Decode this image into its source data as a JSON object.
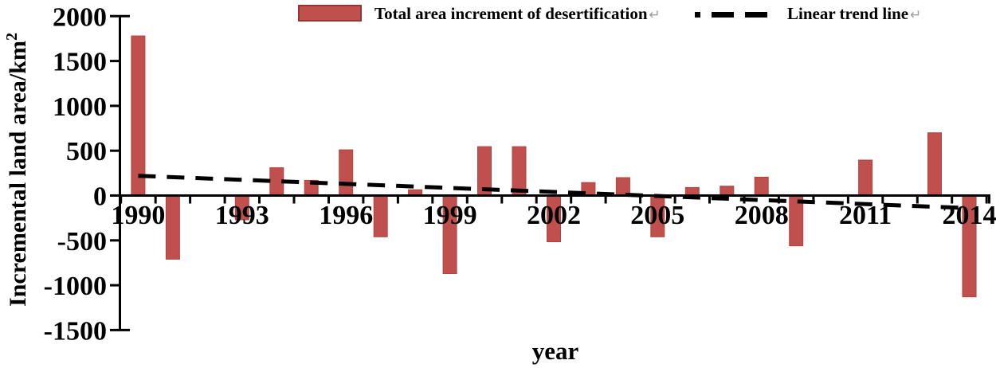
{
  "legend": {
    "bar_label": "Total area increment of desertification",
    "line_label": "Linear trend line",
    "return_mark": "↵"
  },
  "axis": {
    "x_title": "year",
    "y_title_base": "Incremental land area/km",
    "y_title_sup": "2"
  },
  "colors": {
    "bar_fill": "#C0504D",
    "bar_edge": "#AE4542",
    "swatch_border": "#963634",
    "axis_and_trend": "#000000",
    "text": "#000000",
    "return_mark": "#9E9E9E"
  },
  "chart_data": {
    "type": "bar",
    "title": "",
    "xlabel": "year",
    "ylabel": "Incremental land area/km²",
    "ylim": [
      -1500,
      2000
    ],
    "grid": false,
    "legend_position": "top",
    "x": [
      1990,
      1991,
      1992,
      1993,
      1994,
      1995,
      1996,
      1997,
      1998,
      1999,
      2000,
      2001,
      2002,
      2003,
      2004,
      2005,
      2006,
      2007,
      2008,
      2009,
      2010,
      2011,
      2012,
      2013,
      2014
    ],
    "series": [
      {
        "name": "Total area increment of desertification",
        "type": "bar",
        "values": [
          1780,
          -710,
          0,
          -270,
          310,
          170,
          510,
          -460,
          65,
          -870,
          545,
          545,
          -515,
          145,
          200,
          -460,
          90,
          105,
          205,
          -560,
          0,
          395,
          0,
          700,
          -1130
        ]
      },
      {
        "name": "Linear trend line",
        "type": "line",
        "trend_start": 220,
        "trend_end": -140
      }
    ],
    "y_ticks": [
      2000,
      1500,
      1000,
      500,
      0,
      -500,
      -1000,
      -1500
    ],
    "x_tick_labels": [
      "1990",
      "1993",
      "1996",
      "1999",
      "2002",
      "2005",
      "2008",
      "2011",
      "2014"
    ]
  }
}
